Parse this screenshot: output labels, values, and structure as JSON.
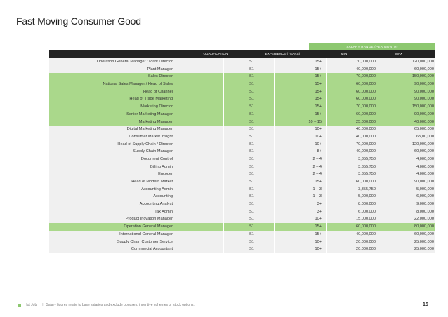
{
  "title": "Fast Moving Consumer Good",
  "salary_band_label": "SALARY RANGE (PER MONTH)",
  "headers": {
    "qualification": "QUALIFICATION",
    "experience": "EXPERIENCE (YEARS)",
    "min": "MIN",
    "max": "MAX"
  },
  "rows": [
    {
      "position": "Operation General Manager / Plant Director",
      "qualification": "S1",
      "experience": "15+",
      "min": "70,000,000",
      "max": "120,000,000",
      "highlight": false
    },
    {
      "position": "Plant Manager",
      "qualification": "S1",
      "experience": "15+",
      "min": "40,000,000",
      "max": "60,000,000",
      "highlight": false
    },
    {
      "position": "Sales Director",
      "qualification": "S1",
      "experience": "15+",
      "min": "70,000,000",
      "max": "150,000,000",
      "highlight": true
    },
    {
      "position": "National Sales Manager / Head of Sales",
      "qualification": "S1",
      "experience": "15+",
      "min": "60,000,000",
      "max": "90,000,000",
      "highlight": true
    },
    {
      "position": "Head of Channel",
      "qualification": "S1",
      "experience": "15+",
      "min": "60,000,000",
      "max": "90,000,000",
      "highlight": true
    },
    {
      "position": "Head of Trade Marketing",
      "qualification": "S1",
      "experience": "15+",
      "min": "60,000,000",
      "max": "90,000,000",
      "highlight": true
    },
    {
      "position": "Marketing Director",
      "qualification": "S1",
      "experience": "15+",
      "min": "70,000,000",
      "max": "150,000,000",
      "highlight": true
    },
    {
      "position": "Senior Marketing Manager",
      "qualification": "S1",
      "experience": "15+",
      "min": "60,000,000",
      "max": "90,000,000",
      "highlight": true
    },
    {
      "position": "Marketing Manager",
      "qualification": "S1",
      "experience": "10 – 15",
      "min": "25,000,000",
      "max": "40,000,000",
      "highlight": true
    },
    {
      "position": "Digital Marketing Manager",
      "qualification": "S1",
      "experience": "10+",
      "min": "40,000,000",
      "max": "65,000,000",
      "highlight": false
    },
    {
      "position": "Consumer Market Insight",
      "qualification": "S1",
      "experience": "10+",
      "min": "40,000,000",
      "max": "65,00,000",
      "highlight": false
    },
    {
      "position": "Head of Supply Chain / Director",
      "qualification": "S1",
      "experience": "10+",
      "min": "70,000,000",
      "max": "120,000,000",
      "highlight": false
    },
    {
      "position": "Supply Chain Manager",
      "qualification": "S1",
      "experience": "8+",
      "min": "40,000,000",
      "max": "60,000,000",
      "highlight": false
    },
    {
      "position": "Document Control",
      "qualification": "S1",
      "experience": "2 – 4",
      "min": "3,355,750",
      "max": "4,000,000",
      "highlight": false
    },
    {
      "position": "Billing Admin",
      "qualification": "S1",
      "experience": "2 – 4",
      "min": "3,355,750",
      "max": "4,000,000",
      "highlight": false
    },
    {
      "position": "Encoder",
      "qualification": "S1",
      "experience": "2 – 4",
      "min": "3,355,750",
      "max": "4,000,000",
      "highlight": false
    },
    {
      "position": "Head of Modern Market",
      "qualification": "S1",
      "experience": "15+",
      "min": "60,000,000",
      "max": "90,000,000",
      "highlight": false
    },
    {
      "position": "Accounting Admin",
      "qualification": "S1",
      "experience": "1 – 3",
      "min": "3,355,750",
      "max": "5,000,000",
      "highlight": false
    },
    {
      "position": "Accounting",
      "qualification": "S1",
      "experience": "1 – 3",
      "min": "5,000,000",
      "max": "6,000,000",
      "highlight": false
    },
    {
      "position": "Accounting Analyst",
      "qualification": "S1",
      "experience": "3+",
      "min": "8,000,000",
      "max": "9,000,000",
      "highlight": false
    },
    {
      "position": "Tax Admin",
      "qualification": "S1",
      "experience": "3+",
      "min": "6,000,000",
      "max": "8,000,000",
      "highlight": false
    },
    {
      "position": "Product Inovation Manager",
      "qualification": "S1",
      "experience": "10+",
      "min": "15,000,000",
      "max": "22,000,000",
      "highlight": false
    },
    {
      "position": "Operation General Manager",
      "qualification": "S1",
      "experience": "15+",
      "min": "60,000,000",
      "max": "80,000,000",
      "highlight": true
    },
    {
      "position": "International General Manager",
      "qualification": "S1",
      "experience": "15+",
      "min": "40,000,000",
      "max": "60,000,000",
      "highlight": false
    },
    {
      "position": "Supply Chain Customer Service",
      "qualification": "S1",
      "experience": "10+",
      "min": "20,000,000",
      "max": "25,000,000",
      "highlight": false
    },
    {
      "position": "Commercial Accountant",
      "qualification": "S1",
      "experience": "10+",
      "min": "20,000,000",
      "max": "25,000,000",
      "highlight": false
    }
  ],
  "footer": {
    "brand": "Hot Job",
    "separator": "|",
    "note": "Salary figures relate to base salaries and exclude bonuses, incentive schemes or stock options."
  },
  "page_number": "15",
  "colors": {
    "accent_green": "#8dc870",
    "row_highlight": "#aad88b",
    "row_plain": "#f0f0f0",
    "header_bg": "#222222"
  }
}
